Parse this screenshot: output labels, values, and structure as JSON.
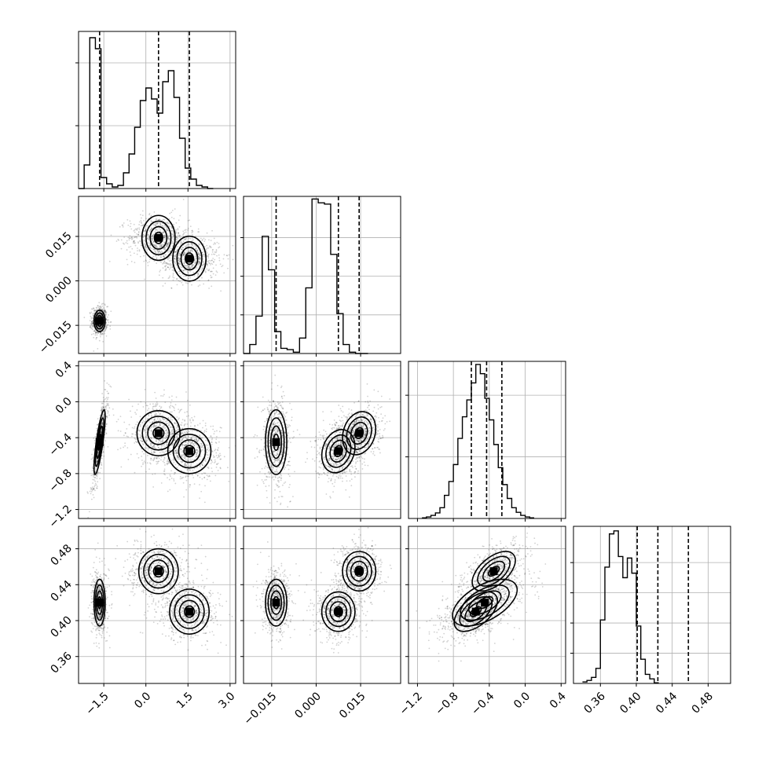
{
  "chart_data": {
    "type": "corner",
    "grid": true,
    "parameters": [
      {
        "range": [
          -2.4,
          3.2
        ],
        "ticks": [
          -1.5,
          0.0,
          1.5,
          3.0
        ],
        "tick_labels": [
          "−1.5",
          "0.0",
          "1.5",
          "3.0"
        ]
      },
      {
        "range": [
          -0.0245,
          0.0285
        ],
        "ticks": [
          -0.015,
          0.0,
          0.015
        ],
        "tick_labels": [
          "−0.015",
          "0.000",
          "0.015"
        ]
      },
      {
        "range": [
          -1.3,
          0.45
        ],
        "ticks": [
          -1.2,
          -0.8,
          -0.4,
          0.0,
          0.4
        ],
        "tick_labels": [
          "−1.2",
          "−0.8",
          "−0.4",
          "0.0",
          "0.4"
        ]
      },
      {
        "range": [
          0.33,
          0.505
        ],
        "ticks": [
          0.36,
          0.4,
          0.44,
          0.48
        ],
        "tick_labels": [
          "0.36",
          "0.40",
          "0.44",
          "0.48"
        ]
      }
    ],
    "histograms": [
      {
        "bins_start": -2.4,
        "bin_width": 0.2,
        "counts": [
          0,
          75,
          480,
          445,
          35,
          15,
          5,
          10,
          50,
          110,
          195,
          280,
          320,
          285,
          240,
          340,
          375,
          290,
          160,
          65,
          30,
          10,
          5,
          0
        ],
        "ylim": [
          0,
          500
        ],
        "ticks": [
          200,
          400
        ],
        "quantiles": [
          -1.65,
          0.45,
          1.55
        ]
      },
      {
        "bins_start": -0.0245,
        "bin_width": 0.0021,
        "counts": [
          0,
          35,
          145,
          455,
          325,
          85,
          20,
          15,
          5,
          60,
          255,
          600,
          585,
          580,
          385,
          155,
          35,
          5,
          0,
          0
        ],
        "ylim": [
          0,
          610
        ],
        "ticks": [
          150,
          300,
          450
        ],
        "quantiles": [
          -0.0135,
          0.0075,
          0.0145
        ]
      },
      {
        "bins_start": -1.15,
        "bin_width": 0.05,
        "counts": [
          2,
          5,
          10,
          18,
          35,
          75,
          120,
          175,
          260,
          330,
          385,
          440,
          500,
          470,
          390,
          320,
          240,
          165,
          110,
          65,
          35,
          20,
          10,
          5,
          2
        ],
        "ylim": [
          0,
          510
        ],
        "ticks": [
          200,
          400
        ],
        "quantiles": [
          -0.6,
          -0.43,
          -0.26
        ]
      },
      {
        "bins_start": 0.34,
        "bin_width": 0.005,
        "counts": [
          5,
          10,
          20,
          50,
          210,
          385,
          495,
          505,
          420,
          350,
          415,
          365,
          190,
          80,
          30,
          15,
          2
        ],
        "ylim": [
          0,
          520
        ],
        "ticks": [
          100,
          200,
          300,
          400
        ],
        "quantiles": [
          0.401,
          0.424,
          0.458
        ]
      }
    ],
    "clusters": {
      "c_p0": [
        -1.65,
        0.45,
        1.55
      ],
      "c_p1": [
        -0.0135,
        0.0145,
        0.0075
      ],
      "c_p2": [
        -0.45,
        -0.35,
        -0.55
      ],
      "c_p3": [
        0.42,
        0.455,
        0.41
      ],
      "spread_p0": [
        0.1,
        0.4,
        0.4
      ],
      "spread_p1": [
        0.0018,
        0.0028,
        0.0028
      ],
      "spread_p2": [
        0.18,
        0.12,
        0.12
      ],
      "spread_p3": [
        0.013,
        0.011,
        0.011
      ],
      "corr_p0_p1": [
        0.0,
        0.0,
        0.0
      ],
      "corr_p0_p2": [
        0.8,
        0.0,
        0.0
      ],
      "corr_p1_p2": [
        0.0,
        0.2,
        0.2
      ],
      "corr_p2_p3": [
        0.55,
        0.55,
        0.55
      ]
    }
  }
}
